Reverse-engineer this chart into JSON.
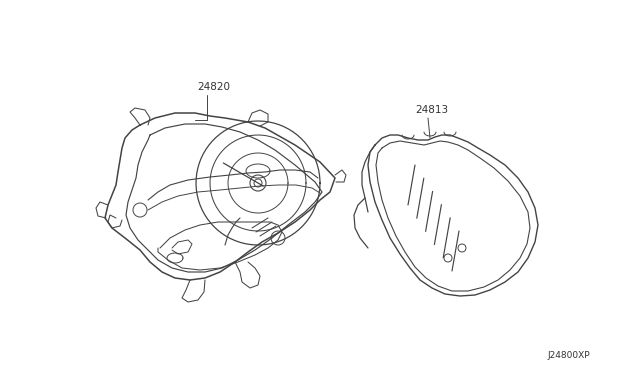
{
  "background_color": "#ffffff",
  "label_24820": "24820",
  "label_24813": "24813",
  "label_bottom_right": "J24800XP",
  "line_color": "#444444",
  "text_color": "#333333",
  "figsize": [
    6.4,
    3.72
  ],
  "dpi": 100
}
